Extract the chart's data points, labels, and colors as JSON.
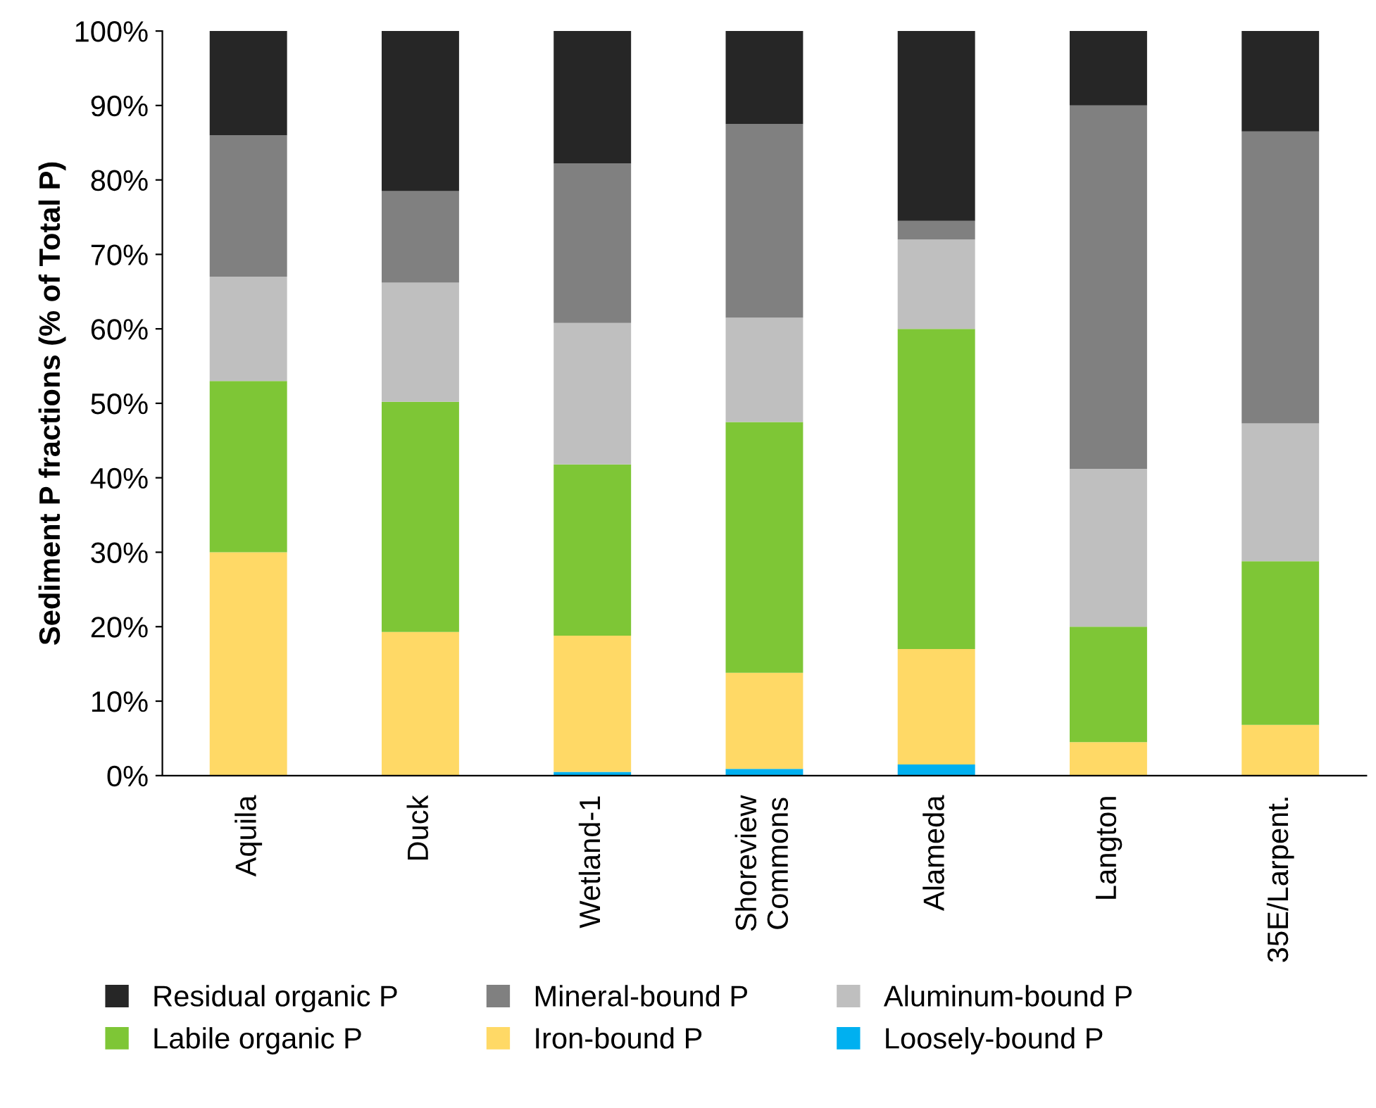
{
  "chart_data": {
    "type": "bar",
    "stacked": true,
    "ylabel": "Sediment P fractions (% of Total P)",
    "categories": [
      "Aquila",
      "Duck",
      "Wetland-1",
      "Shoreview\nCommons",
      "Alameda",
      "Langton",
      "35E/Larpent."
    ],
    "series": [
      {
        "name": "Loosely-bound P",
        "color": "#00b0f0",
        "values": [
          0,
          0,
          0.5,
          0.9,
          1.5,
          0,
          0
        ]
      },
      {
        "name": "Iron-bound P",
        "color": "#ffd966",
        "values": [
          30,
          19.3,
          18.3,
          12.9,
          15.5,
          4.5,
          6.8
        ]
      },
      {
        "name": "Labile organic P",
        "color": "#7ec636",
        "values": [
          23,
          30.9,
          23,
          33.7,
          43,
          15.5,
          22
        ]
      },
      {
        "name": "Aluminum-bound P",
        "color": "#bfbfbf",
        "values": [
          14,
          16,
          19,
          14,
          12,
          21.2,
          18.5
        ]
      },
      {
        "name": "Mineral-bound P",
        "color": "#808080",
        "values": [
          19,
          12.3,
          21.4,
          26,
          2.5,
          48.8,
          39.2
        ]
      },
      {
        "name": "Residual organic P",
        "color": "#262626",
        "values": [
          14,
          21.5,
          17.8,
          12.5,
          25.5,
          10,
          13.5
        ]
      }
    ],
    "ylim": [
      0,
      100
    ],
    "yticks": [
      {
        "value": 0,
        "label": "0%"
      },
      {
        "value": 10,
        "label": "10%"
      },
      {
        "value": 20,
        "label": "20%"
      },
      {
        "value": 30,
        "label": "30%"
      },
      {
        "value": 40,
        "label": "40%"
      },
      {
        "value": 50,
        "label": "50%"
      },
      {
        "value": 60,
        "label": "60%"
      },
      {
        "value": 70,
        "label": "70%"
      },
      {
        "value": 80,
        "label": "80%"
      },
      {
        "value": 90,
        "label": "90%"
      },
      {
        "value": 100,
        "label": "100%"
      }
    ],
    "grid": false,
    "legend": "bottom"
  }
}
